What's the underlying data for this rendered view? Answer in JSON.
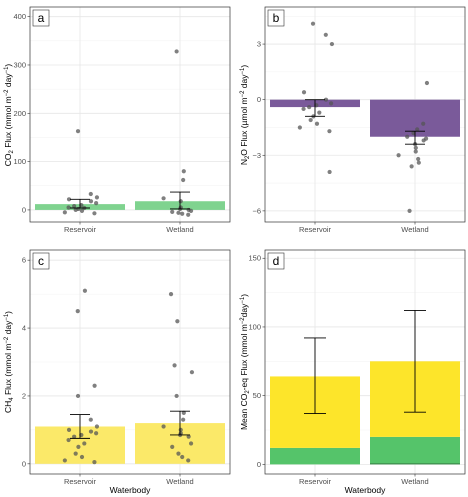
{
  "chart_data": [
    {
      "id": "a",
      "panel_label": "a",
      "type": "bar",
      "categories": [
        "Reservoir",
        "Wetland"
      ],
      "values": [
        12,
        18
      ],
      "error_low": [
        4,
        2
      ],
      "error_high": [
        22,
        37
      ],
      "points": [
        [
          -7,
          -5,
          -2,
          0,
          2,
          4,
          5,
          8,
          10,
          14,
          18,
          22,
          26,
          33,
          163
        ],
        [
          -10,
          -8,
          -6,
          -4,
          -2,
          0,
          2,
          5,
          18,
          24,
          62,
          80,
          328
        ]
      ],
      "bar_color": "#7fd38f",
      "ylabel": "CO2 Flux (mmol m-2 day-1)",
      "ylim": [
        -25,
        420
      ],
      "yticks": [
        0,
        100,
        200,
        300,
        400
      ],
      "xlabel": ""
    },
    {
      "id": "b",
      "panel_label": "b",
      "type": "bar",
      "categories": [
        "Reservoir",
        "Wetland"
      ],
      "values": [
        -0.4,
        -2.0
      ],
      "error_low": [
        -0.9,
        -2.4
      ],
      "error_high": [
        0.0,
        -1.7
      ],
      "points": [
        [
          -1.7,
          -1.5,
          -1.3,
          -1.1,
          -0.9,
          -0.7,
          -0.5,
          -0.4,
          -0.3,
          -0.2,
          0.0,
          0.4,
          3.0,
          3.5,
          4.1,
          -3.9
        ],
        [
          -1.3,
          -1.6,
          -1.8,
          -2.0,
          -2.1,
          -2.2,
          -2.4,
          -2.6,
          -2.8,
          -3.0,
          -3.2,
          -3.4,
          -3.6,
          0.9,
          -6.0
        ]
      ],
      "bar_color": "#7a5a9a",
      "ylabel": "N2O Flux (µmol m-2 day-1)",
      "ylim": [
        -6.6,
        5.0
      ],
      "yticks": [
        -6,
        -3,
        0,
        3
      ],
      "xlabel": ""
    },
    {
      "id": "c",
      "panel_label": "c",
      "type": "bar",
      "categories": [
        "Reservoir",
        "Wetland"
      ],
      "values": [
        1.1,
        1.2
      ],
      "error_low": [
        0.75,
        0.85
      ],
      "error_high": [
        1.45,
        1.55
      ],
      "points": [
        [
          0.05,
          0.1,
          0.2,
          0.3,
          0.5,
          0.6,
          0.7,
          0.8,
          0.85,
          0.9,
          0.95,
          1.0,
          1.1,
          1.3,
          2.0,
          2.3,
          4.5,
          5.1
        ],
        [
          0.1,
          0.2,
          0.3,
          0.5,
          0.6,
          0.8,
          0.85,
          0.9,
          1.0,
          1.1,
          1.3,
          1.5,
          2.0,
          2.7,
          2.9,
          4.2,
          5.0
        ]
      ],
      "bar_color": "#fbe969",
      "ylabel": "CH4 Flux (mmol m-2 day-1)",
      "ylim": [
        -0.3,
        6.3
      ],
      "yticks": [
        0,
        2,
        4,
        6
      ],
      "xlabel": "Waterbody"
    },
    {
      "id": "d",
      "panel_label": "d",
      "type": "bar",
      "stacked": true,
      "categories": [
        "Reservoir",
        "Wetland"
      ],
      "series": [
        {
          "values": [
            12,
            20
          ],
          "color": "#55c46a"
        },
        {
          "values": [
            52,
            55
          ],
          "color": "#fde52a"
        }
      ],
      "totals": [
        64,
        75
      ],
      "error_low": [
        37,
        38
      ],
      "error_high": [
        92,
        112
      ],
      "ylabel": "Mean CO2-eq Flux (mmol m-2 day-1)",
      "ylim": [
        -7,
        156
      ],
      "yticks": [
        0,
        50,
        100,
        150
      ],
      "xlabel": "Waterbody"
    }
  ]
}
